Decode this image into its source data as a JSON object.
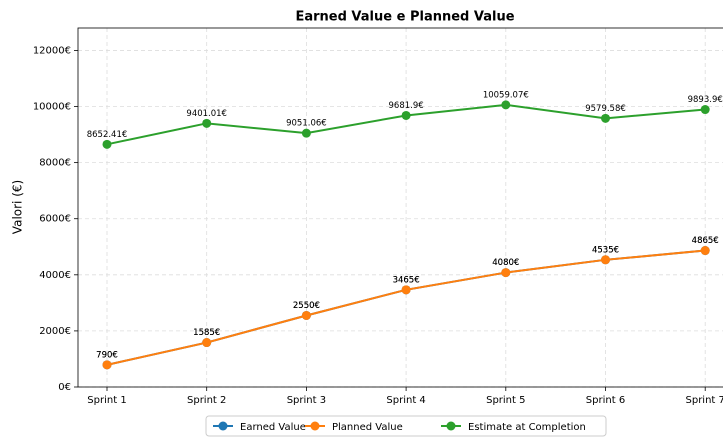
{
  "chart_data": {
    "type": "line",
    "title": "Earned Value e Planned Value",
    "y_label": "Valori (€)",
    "categories": [
      "Sprint 1",
      "Sprint 2",
      "Sprint 3",
      "Sprint 4",
      "Sprint 5",
      "Sprint 6",
      "Sprint 7"
    ],
    "series": [
      {
        "name": "Earned Value",
        "color": "#1f77b4",
        "values": [
          790,
          1585,
          2550,
          3465,
          4080,
          4535,
          4865
        ],
        "value_labels": [
          "790€",
          "1585€",
          "2550€",
          "3465€",
          "4080€",
          "4535€",
          "4865€"
        ]
      },
      {
        "name": "Planned Value",
        "color": "#ff7f0e",
        "values": [
          790,
          1585,
          2550,
          3465,
          4080,
          4535,
          4865
        ],
        "value_labels": [
          "790€",
          "1585€",
          "2550€",
          "3465€",
          "4080€",
          "4535€",
          "4865€"
        ]
      },
      {
        "name": "Estimate at Completion",
        "color": "#2ca02c",
        "values": [
          8652.41,
          9401.01,
          9051.06,
          9681.9,
          10059.07,
          9579.58,
          9893.9
        ],
        "value_labels": [
          "8652.41€",
          "9401.01€",
          "9051.06€",
          "9681.9€",
          "10059.07€",
          "9579.58€",
          "9893.9€"
        ]
      }
    ],
    "ylim": [
      0,
      12800
    ],
    "yticks": [
      {
        "value": 0,
        "label": "0€"
      },
      {
        "value": 2000,
        "label": "2000€"
      },
      {
        "value": 4000,
        "label": "4000€"
      },
      {
        "value": 6000,
        "label": "6000€"
      },
      {
        "value": 8000,
        "label": "8000€"
      },
      {
        "value": 10000,
        "label": "10000€"
      },
      {
        "value": 12000,
        "label": "12000€"
      }
    ],
    "grid": true,
    "legend": "bottom"
  }
}
